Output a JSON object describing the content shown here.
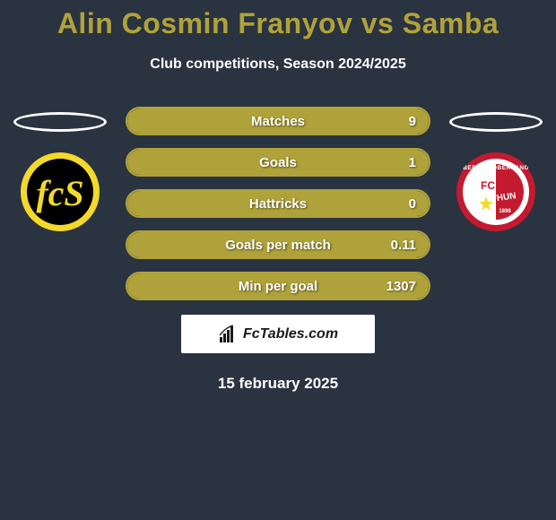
{
  "header": {
    "title": "Alin Cosmin Franyov vs Samba",
    "title_color": "#b0a23a",
    "subtitle": "Club competitions, Season 2024/2025"
  },
  "accent_color": "#b0a23a",
  "ellipse_border": "#ffffff",
  "background_color": "#2a3340",
  "left_club": {
    "name": "club-logo-left",
    "circle_bg": "#f3d92a",
    "inner_bg": "#000000"
  },
  "right_club": {
    "name": "club-logo-right",
    "circle_bg": "#c31a2f",
    "inner_bg": "#ffffff"
  },
  "stats": [
    {
      "label": "Matches",
      "right_value": "9",
      "fill_pct": 100
    },
    {
      "label": "Goals",
      "right_value": "1",
      "fill_pct": 100
    },
    {
      "label": "Hattricks",
      "right_value": "0",
      "fill_pct": 100
    },
    {
      "label": "Goals per match",
      "right_value": "0.11",
      "fill_pct": 100
    },
    {
      "label": "Min per goal",
      "right_value": "1307",
      "fill_pct": 100
    }
  ],
  "brand": {
    "text": "FcTables.com"
  },
  "date": "15 february 2025"
}
